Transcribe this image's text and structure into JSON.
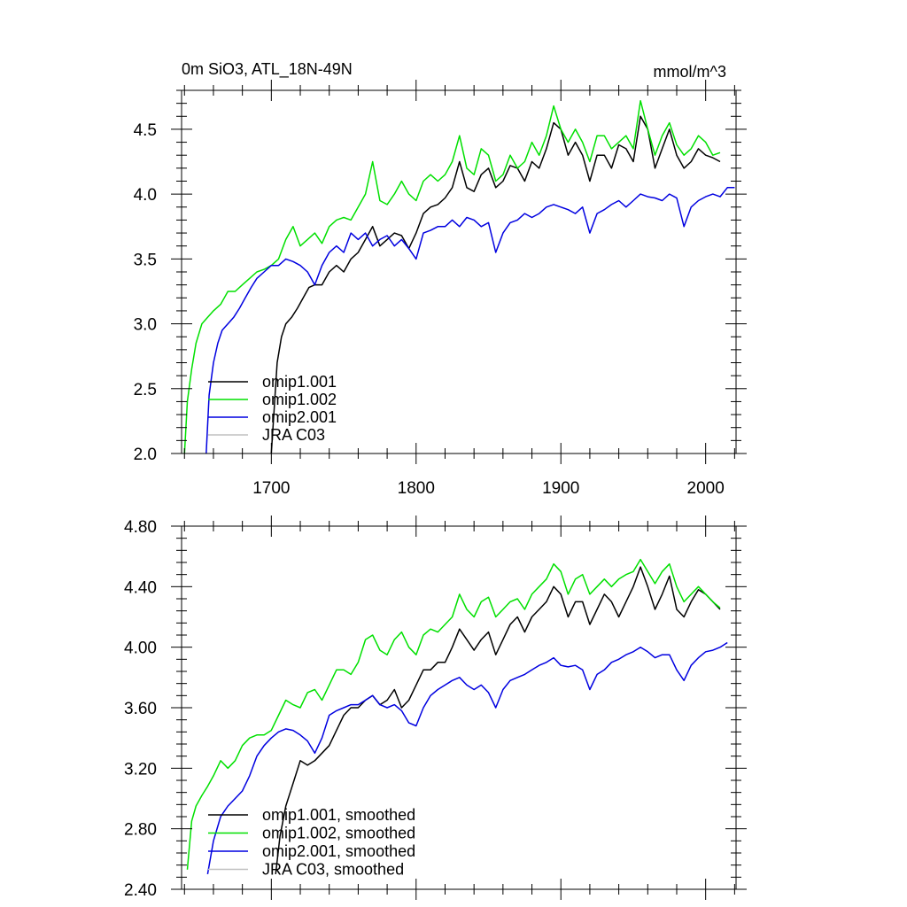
{
  "colors": {
    "omip1_001": "#000000",
    "omip1_002": "#00e000",
    "omip2_001": "#0000e0",
    "jra_c03": "#c0c0c0"
  },
  "chart_data": [
    {
      "type": "line",
      "title": "0m SiO3, ATL_18N-49N",
      "units": "mmol/m^3",
      "xlim": [
        1638,
        2021
      ],
      "ylim": [
        2.0,
        4.8
      ],
      "x_major_ticks": [
        1700,
        1800,
        1900,
        2000
      ],
      "x_tick_labels": [
        "1700",
        "1800",
        "1900",
        "2000"
      ],
      "y_major_ticks": [
        2.0,
        2.5,
        3.0,
        3.5,
        4.0,
        4.5
      ],
      "y_tick_labels": [
        "2.0",
        "2.5",
        "3.0",
        "3.5",
        "4.0",
        "4.5"
      ],
      "legend": [
        "omip1.001",
        "omip1.002",
        "omip2.001",
        "JRA C03"
      ],
      "legend_position": "bottom-left",
      "series": [
        {
          "name": "omip1.001",
          "color_key": "omip1_001",
          "x": [
            1700,
            1702,
            1704,
            1707,
            1710,
            1714,
            1718,
            1722,
            1726,
            1730,
            1735,
            1740,
            1745,
            1750,
            1755,
            1760,
            1765,
            1770,
            1775,
            1780,
            1785,
            1790,
            1795,
            1800,
            1805,
            1810,
            1815,
            1820,
            1825,
            1830,
            1835,
            1840,
            1845,
            1850,
            1855,
            1860,
            1865,
            1870,
            1875,
            1880,
            1885,
            1890,
            1895,
            1900,
            1905,
            1910,
            1915,
            1920,
            1925,
            1930,
            1935,
            1940,
            1945,
            1950,
            1955,
            1960,
            1965,
            1970,
            1975,
            1980,
            1985,
            1990,
            1995,
            2000,
            2005,
            2010
          ],
          "y": [
            2.0,
            2.35,
            2.7,
            2.9,
            3.0,
            3.05,
            3.12,
            3.2,
            3.28,
            3.3,
            3.3,
            3.4,
            3.45,
            3.4,
            3.5,
            3.55,
            3.65,
            3.75,
            3.6,
            3.65,
            3.7,
            3.68,
            3.58,
            3.7,
            3.85,
            3.9,
            3.92,
            3.97,
            4.05,
            4.25,
            4.05,
            4.02,
            4.15,
            4.2,
            4.05,
            4.1,
            4.22,
            4.2,
            4.1,
            4.25,
            4.2,
            4.35,
            4.55,
            4.5,
            4.3,
            4.4,
            4.3,
            4.1,
            4.3,
            4.3,
            4.2,
            4.38,
            4.35,
            4.25,
            4.6,
            4.5,
            4.2,
            4.35,
            4.5,
            4.3,
            4.2,
            4.25,
            4.35,
            4.3,
            4.28,
            4.25
          ]
        },
        {
          "name": "omip1.002",
          "color_key": "omip1_002",
          "x": [
            1640,
            1642,
            1645,
            1648,
            1652,
            1656,
            1660,
            1665,
            1670,
            1675,
            1680,
            1685,
            1690,
            1695,
            1700,
            1705,
            1710,
            1715,
            1720,
            1725,
            1730,
            1735,
            1740,
            1745,
            1750,
            1755,
            1760,
            1765,
            1770,
            1775,
            1780,
            1785,
            1790,
            1795,
            1800,
            1805,
            1810,
            1815,
            1820,
            1825,
            1830,
            1835,
            1840,
            1845,
            1850,
            1855,
            1860,
            1865,
            1870,
            1875,
            1880,
            1885,
            1890,
            1895,
            1900,
            1905,
            1910,
            1915,
            1920,
            1925,
            1930,
            1935,
            1940,
            1945,
            1950,
            1955,
            1960,
            1965,
            1970,
            1975,
            1980,
            1985,
            1990,
            1995,
            2000,
            2005,
            2010
          ],
          "y": [
            2.0,
            2.4,
            2.65,
            2.85,
            3.0,
            3.05,
            3.1,
            3.15,
            3.25,
            3.25,
            3.3,
            3.35,
            3.4,
            3.42,
            3.45,
            3.5,
            3.65,
            3.75,
            3.6,
            3.65,
            3.7,
            3.62,
            3.75,
            3.8,
            3.82,
            3.8,
            3.9,
            4.0,
            4.25,
            3.95,
            3.92,
            4.0,
            4.1,
            4.0,
            3.95,
            4.1,
            4.15,
            4.1,
            4.15,
            4.25,
            4.45,
            4.2,
            4.15,
            4.35,
            4.3,
            4.1,
            4.15,
            4.3,
            4.2,
            4.25,
            4.4,
            4.3,
            4.45,
            4.68,
            4.5,
            4.4,
            4.5,
            4.4,
            4.25,
            4.45,
            4.45,
            4.35,
            4.4,
            4.45,
            4.35,
            4.72,
            4.5,
            4.3,
            4.45,
            4.55,
            4.38,
            4.3,
            4.35,
            4.45,
            4.4,
            4.3,
            4.32
          ]
        },
        {
          "name": "omip2.001",
          "color_key": "omip2_001",
          "x": [
            1655,
            1657,
            1660,
            1663,
            1666,
            1670,
            1674,
            1678,
            1682,
            1686,
            1690,
            1695,
            1700,
            1705,
            1710,
            1715,
            1720,
            1725,
            1730,
            1735,
            1740,
            1745,
            1750,
            1755,
            1760,
            1765,
            1770,
            1775,
            1780,
            1785,
            1790,
            1795,
            1800,
            1805,
            1810,
            1815,
            1820,
            1825,
            1830,
            1835,
            1840,
            1845,
            1850,
            1855,
            1860,
            1865,
            1870,
            1875,
            1880,
            1885,
            1890,
            1895,
            1900,
            1905,
            1910,
            1915,
            1920,
            1925,
            1930,
            1935,
            1940,
            1945,
            1950,
            1955,
            1960,
            1965,
            1970,
            1975,
            1980,
            1985,
            1990,
            1995,
            2000,
            2005,
            2010,
            2015,
            2020
          ],
          "y": [
            2.0,
            2.45,
            2.7,
            2.85,
            2.95,
            3.0,
            3.05,
            3.12,
            3.2,
            3.28,
            3.35,
            3.4,
            3.45,
            3.45,
            3.5,
            3.48,
            3.45,
            3.4,
            3.3,
            3.45,
            3.55,
            3.6,
            3.55,
            3.7,
            3.65,
            3.7,
            3.6,
            3.65,
            3.68,
            3.6,
            3.65,
            3.58,
            3.5,
            3.7,
            3.72,
            3.75,
            3.75,
            3.8,
            3.75,
            3.82,
            3.8,
            3.75,
            3.78,
            3.55,
            3.7,
            3.78,
            3.8,
            3.85,
            3.82,
            3.85,
            3.9,
            3.92,
            3.9,
            3.88,
            3.85,
            3.9,
            3.7,
            3.85,
            3.88,
            3.92,
            3.95,
            3.9,
            3.95,
            4.0,
            3.98,
            3.97,
            3.95,
            4.0,
            3.97,
            3.75,
            3.9,
            3.95,
            3.98,
            4.0,
            3.98,
            4.05,
            4.05
          ]
        }
      ]
    },
    {
      "type": "line",
      "xlim": [
        1638,
        2021
      ],
      "ylim": [
        2.4,
        4.8
      ],
      "x_major_ticks": [
        1700,
        1800,
        1900,
        2000
      ],
      "y_major_ticks": [
        2.4,
        2.8,
        3.2,
        3.6,
        4.0,
        4.4,
        4.8
      ],
      "y_tick_labels": [
        "2.40",
        "2.80",
        "3.20",
        "3.60",
        "4.00",
        "4.40",
        "4.80"
      ],
      "legend": [
        "omip1.001, smoothed",
        "omip1.002, smoothed",
        "omip2.001, smoothed",
        "JRA C03, smoothed"
      ],
      "legend_position": "bottom-left",
      "series": [
        {
          "name": "omip1.001, smoothed",
          "color_key": "omip1_001",
          "x": [
            1703,
            1706,
            1710,
            1715,
            1720,
            1725,
            1730,
            1735,
            1740,
            1745,
            1750,
            1755,
            1760,
            1765,
            1770,
            1775,
            1780,
            1785,
            1790,
            1795,
            1800,
            1805,
            1810,
            1815,
            1820,
            1825,
            1830,
            1835,
            1840,
            1845,
            1850,
            1855,
            1860,
            1865,
            1870,
            1875,
            1880,
            1885,
            1890,
            1895,
            1900,
            1905,
            1910,
            1915,
            1920,
            1925,
            1930,
            1935,
            1940,
            1945,
            1950,
            1955,
            1960,
            1965,
            1970,
            1975,
            1980,
            1985,
            1990,
            1995,
            2000,
            2005,
            2010
          ],
          "y": [
            2.5,
            2.75,
            2.95,
            3.1,
            3.25,
            3.22,
            3.25,
            3.3,
            3.35,
            3.45,
            3.55,
            3.6,
            3.6,
            3.65,
            3.68,
            3.62,
            3.65,
            3.72,
            3.6,
            3.65,
            3.75,
            3.85,
            3.85,
            3.9,
            3.9,
            4.0,
            4.12,
            4.05,
            3.98,
            4.05,
            4.1,
            3.95,
            4.05,
            4.15,
            4.2,
            4.1,
            4.2,
            4.25,
            4.3,
            4.4,
            4.35,
            4.2,
            4.3,
            4.3,
            4.15,
            4.25,
            4.35,
            4.3,
            4.2,
            4.3,
            4.4,
            4.53,
            4.4,
            4.25,
            4.35,
            4.47,
            4.25,
            4.2,
            4.3,
            4.38,
            4.35,
            4.3,
            4.25
          ]
        },
        {
          "name": "omip1.002, smoothed",
          "color_key": "omip1_002",
          "x": [
            1642,
            1645,
            1648,
            1652,
            1656,
            1660,
            1665,
            1670,
            1675,
            1680,
            1685,
            1690,
            1695,
            1700,
            1705,
            1710,
            1715,
            1720,
            1725,
            1730,
            1735,
            1740,
            1745,
            1750,
            1755,
            1760,
            1765,
            1770,
            1775,
            1780,
            1785,
            1790,
            1795,
            1800,
            1805,
            1810,
            1815,
            1820,
            1825,
            1830,
            1835,
            1840,
            1845,
            1850,
            1855,
            1860,
            1865,
            1870,
            1875,
            1880,
            1885,
            1890,
            1895,
            1900,
            1905,
            1910,
            1915,
            1920,
            1925,
            1930,
            1935,
            1940,
            1945,
            1950,
            1955,
            1960,
            1965,
            1970,
            1975,
            1980,
            1985,
            1990,
            1995,
            2000,
            2005,
            2010
          ],
          "y": [
            2.53,
            2.85,
            2.95,
            3.02,
            3.08,
            3.15,
            3.25,
            3.2,
            3.25,
            3.35,
            3.4,
            3.42,
            3.42,
            3.45,
            3.55,
            3.65,
            3.62,
            3.6,
            3.7,
            3.72,
            3.65,
            3.75,
            3.85,
            3.85,
            3.82,
            3.9,
            4.05,
            4.08,
            3.98,
            3.95,
            4.05,
            4.1,
            4.0,
            3.95,
            4.08,
            4.12,
            4.1,
            4.15,
            4.2,
            4.35,
            4.25,
            4.2,
            4.3,
            4.33,
            4.2,
            4.25,
            4.3,
            4.32,
            4.25,
            4.35,
            4.4,
            4.45,
            4.55,
            4.5,
            4.35,
            4.45,
            4.48,
            4.35,
            4.4,
            4.45,
            4.4,
            4.45,
            4.48,
            4.5,
            4.58,
            4.5,
            4.42,
            4.5,
            4.55,
            4.4,
            4.3,
            4.35,
            4.4,
            4.35,
            4.3,
            4.26
          ]
        },
        {
          "name": "omip2.001, smoothed",
          "color_key": "omip2_001",
          "x": [
            1656,
            1660,
            1665,
            1670,
            1675,
            1680,
            1685,
            1690,
            1695,
            1700,
            1705,
            1710,
            1715,
            1720,
            1725,
            1730,
            1735,
            1740,
            1745,
            1750,
            1755,
            1760,
            1765,
            1770,
            1775,
            1780,
            1785,
            1790,
            1795,
            1800,
            1805,
            1810,
            1815,
            1820,
            1825,
            1830,
            1835,
            1840,
            1845,
            1850,
            1855,
            1860,
            1865,
            1870,
            1875,
            1880,
            1885,
            1890,
            1895,
            1900,
            1905,
            1910,
            1915,
            1920,
            1925,
            1930,
            1935,
            1940,
            1945,
            1950,
            1955,
            1960,
            1965,
            1970,
            1975,
            1980,
            1985,
            1990,
            1995,
            2000,
            2005,
            2010,
            2015
          ],
          "y": [
            2.5,
            2.72,
            2.88,
            2.95,
            3.0,
            3.05,
            3.15,
            3.28,
            3.35,
            3.4,
            3.44,
            3.46,
            3.45,
            3.42,
            3.38,
            3.3,
            3.4,
            3.55,
            3.58,
            3.6,
            3.62,
            3.62,
            3.65,
            3.68,
            3.62,
            3.6,
            3.62,
            3.58,
            3.5,
            3.48,
            3.6,
            3.68,
            3.72,
            3.75,
            3.78,
            3.8,
            3.75,
            3.72,
            3.75,
            3.7,
            3.6,
            3.72,
            3.78,
            3.8,
            3.82,
            3.85,
            3.88,
            3.9,
            3.93,
            3.88,
            3.87,
            3.88,
            3.85,
            3.72,
            3.82,
            3.85,
            3.9,
            3.92,
            3.95,
            3.97,
            4.0,
            3.97,
            3.93,
            3.95,
            3.95,
            3.85,
            3.78,
            3.88,
            3.93,
            3.97,
            3.98,
            4.0,
            4.03
          ]
        }
      ]
    }
  ]
}
